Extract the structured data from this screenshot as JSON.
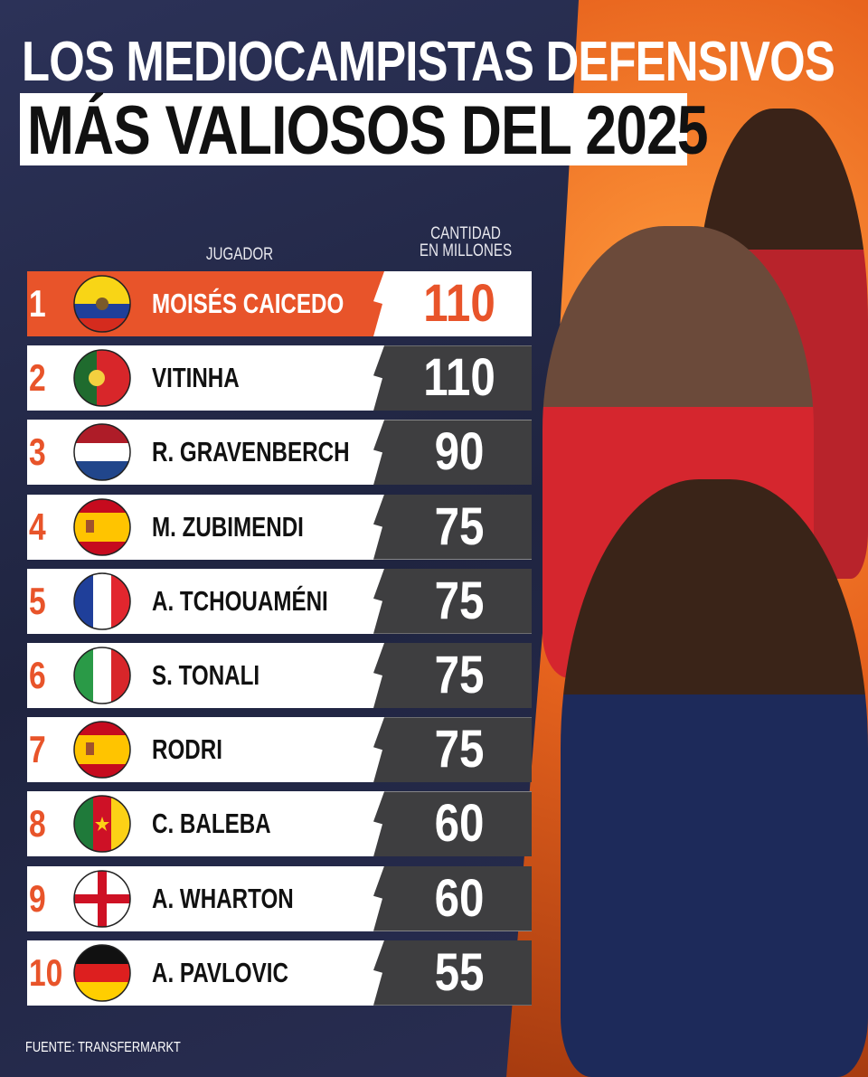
{
  "title": {
    "line1": "LOS MEDIOCAMPISTAS DEFENSIVOS",
    "line2": "MÁS VALIOSOS DEL 2025"
  },
  "headers": {
    "player": "JUGADOR",
    "value_line1": "CANTIDAD",
    "value_line2": "EN MILLONES"
  },
  "source": "FUENTE: TRANSFERMARKT",
  "colors": {
    "accent": "#e8542a",
    "dark": "#3e3e40",
    "navy": "#232846"
  },
  "chart_data": {
    "type": "table",
    "title": "LOS MEDIOCAMPISTAS DEFENSIVOS MÁS VALIOSOS DEL 2025",
    "columns": [
      "JUGADOR",
      "CANTIDAD EN MILLONES"
    ],
    "rows": [
      {
        "rank": "1",
        "flag": "ecuador",
        "name": "MOISÉS CAICEDO",
        "value": "110"
      },
      {
        "rank": "2",
        "flag": "portugal",
        "name": "VITINHA",
        "value": "110"
      },
      {
        "rank": "3",
        "flag": "netherlands",
        "name": "R. GRAVENBERCH",
        "value": "90"
      },
      {
        "rank": "4",
        "flag": "spain",
        "name": "M. ZUBIMENDI",
        "value": "75"
      },
      {
        "rank": "5",
        "flag": "france",
        "name": "A. TCHOUAMÉNI",
        "value": "75"
      },
      {
        "rank": "6",
        "flag": "italy",
        "name": "S. TONALI",
        "value": "75"
      },
      {
        "rank": "7",
        "flag": "spain",
        "name": "RODRI",
        "value": "75"
      },
      {
        "rank": "8",
        "flag": "cameroon",
        "name": "C. BALEBA",
        "value": "60"
      },
      {
        "rank": "9",
        "flag": "england",
        "name": "A. WHARTON",
        "value": "60"
      },
      {
        "rank": "10",
        "flag": "germany",
        "name": "A. PAVLOVIC",
        "value": "55"
      }
    ]
  }
}
